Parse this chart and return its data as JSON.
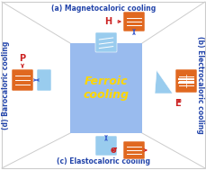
{
  "title": "Ferroic\ncooling",
  "title_color": "#FFD700",
  "bg_color": "#ffffff",
  "center_box_color": "#99bbee",
  "labels": {
    "top": "(a) Magnetocaloric cooling",
    "right": "(b) Electrocaloric cooling",
    "bottom": "(c) Elastocaloric cooling",
    "left": "(d) Barocaloric cooling"
  },
  "field_labels": {
    "top": "H",
    "right": "E",
    "bottom": "σ",
    "left": "P"
  },
  "arrow_color": "#3355cc",
  "field_color": "#cc2222",
  "orange_color": "#e06820",
  "blue_inner_color": "#99ccee",
  "diagonal_color": "#cccccc",
  "label_color": "#2244aa"
}
